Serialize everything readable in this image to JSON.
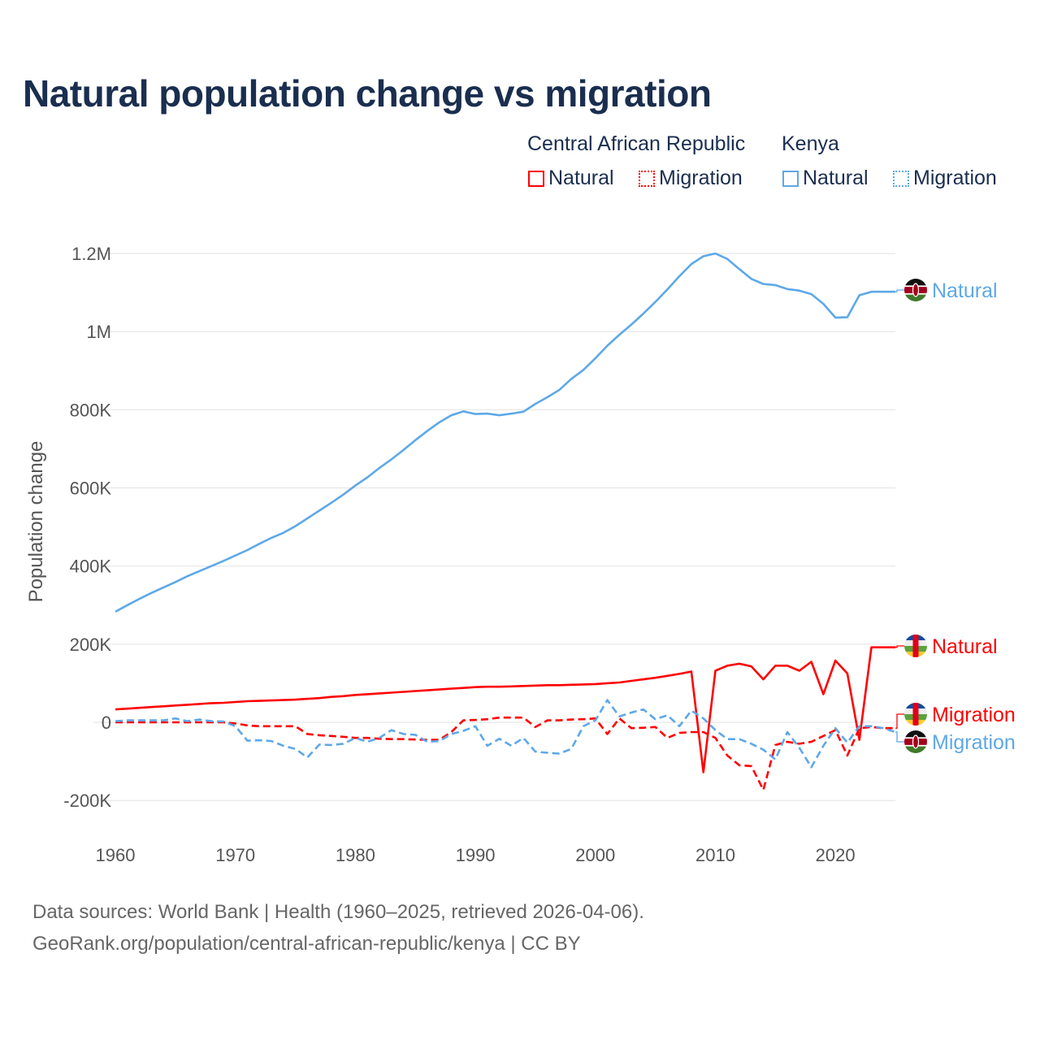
{
  "title": "Natural population change vs migration",
  "legend": {
    "groups": [
      {
        "name": "Central African Republic",
        "items": [
          "Natural",
          "Migration"
        ]
      },
      {
        "name": "Kenya",
        "items": [
          "Natural",
          "Migration"
        ]
      }
    ]
  },
  "footer": {
    "line1": "Data sources: World Bank | Health (1960–2025, retrieved 2026-04-06).",
    "line2": "GeoRank.org/population/central-african-republic/kenya | CC BY"
  },
  "colors": {
    "car": "#ff0000",
    "kenya": "#5ea8e8",
    "title": "#1a2e4f"
  },
  "chart_data": {
    "type": "line",
    "title": "Natural population change vs migration",
    "xlabel": "",
    "ylabel": "Population change",
    "xlim": [
      1960,
      2025
    ],
    "ylim": [
      -200000,
      1200000
    ],
    "x_ticks": [
      1960,
      1970,
      1980,
      1990,
      2000,
      2010,
      2020
    ],
    "x_tick_labels": [
      "1960",
      "1970",
      "1980",
      "1990",
      "2000",
      "2010",
      "2020"
    ],
    "y_ticks": [
      -200000,
      0,
      200000,
      400000,
      600000,
      800000,
      1000000,
      1200000
    ],
    "y_tick_labels": [
      "-200K",
      "0",
      "200K",
      "400K",
      "600K",
      "800K",
      "1M",
      "1.2M"
    ],
    "grid": true,
    "legend_position": "top-right",
    "x": [
      1960,
      1961,
      1962,
      1963,
      1964,
      1965,
      1966,
      1967,
      1968,
      1969,
      1970,
      1971,
      1972,
      1973,
      1974,
      1975,
      1976,
      1977,
      1978,
      1979,
      1980,
      1981,
      1982,
      1983,
      1984,
      1985,
      1986,
      1987,
      1988,
      1989,
      1990,
      1991,
      1992,
      1993,
      1994,
      1995,
      1996,
      1997,
      1998,
      1999,
      2000,
      2001,
      2002,
      2003,
      2004,
      2005,
      2006,
      2007,
      2008,
      2009,
      2010,
      2011,
      2012,
      2013,
      2014,
      2015,
      2016,
      2017,
      2018,
      2019,
      2020,
      2021,
      2022,
      2023,
      2024,
      2025
    ],
    "series": [
      {
        "name": "Kenya Natural",
        "country": "Kenya",
        "kind": "Natural",
        "end_label": "Natural",
        "dashed": false,
        "values": [
          283000,
          300000,
          316000,
          331000,
          345000,
          359000,
          374000,
          387000,
          400000,
          413000,
          427000,
          441000,
          457000,
          472000,
          485000,
          502000,
          522000,
          542000,
          562000,
          583000,
          606000,
          627000,
          651000,
          673000,
          697000,
          722000,
          746000,
          768000,
          786000,
          796000,
          789000,
          790000,
          786000,
          790000,
          795000,
          815000,
          832000,
          851000,
          879000,
          902000,
          932000,
          964000,
          992000,
          1018000,
          1046000,
          1076000,
          1108000,
          1142000,
          1173000,
          1193000,
          1200000,
          1186000,
          1160000,
          1135000,
          1122000,
          1119000,
          1109000,
          1105000,
          1096000,
          1071000,
          1036000,
          1037000,
          1093000,
          1102000,
          1102000,
          1102000
        ]
      },
      {
        "name": "Central African Republic Natural",
        "country": "Central African Republic",
        "kind": "Natural",
        "end_label": "Natural",
        "dashed": false,
        "values": [
          33000,
          35000,
          37000,
          39000,
          41000,
          43000,
          45000,
          47000,
          49000,
          50000,
          52000,
          54000,
          55000,
          56000,
          57000,
          58000,
          60000,
          62000,
          65000,
          67000,
          70000,
          72000,
          74000,
          76000,
          78000,
          80000,
          82000,
          84000,
          86000,
          88000,
          90000,
          91000,
          91000,
          92000,
          93000,
          94000,
          95000,
          95000,
          96000,
          97000,
          98000,
          100000,
          102000,
          106000,
          110000,
          114000,
          119000,
          124000,
          130000,
          -128000,
          132000,
          145000,
          150000,
          143000,
          110000,
          145000,
          145000,
          132000,
          155000,
          72000,
          158000,
          125000,
          -45000,
          192000,
          192000,
          192000
        ]
      },
      {
        "name": "Central African Republic Migration",
        "country": "Central African Republic",
        "kind": "Migration",
        "end_label": "Migration",
        "dashed": true,
        "values": [
          0,
          0,
          0,
          0,
          0,
          0,
          0,
          0,
          0,
          0,
          -3000,
          -8000,
          -10000,
          -10000,
          -10000,
          -10000,
          -30000,
          -33000,
          -35000,
          -37000,
          -40000,
          -40000,
          -42000,
          -43000,
          -43000,
          -44000,
          -45000,
          -45000,
          -25000,
          5000,
          6000,
          8000,
          12000,
          12000,
          12000,
          -12000,
          5000,
          5000,
          7000,
          8000,
          10000,
          -30000,
          10000,
          -15000,
          -14000,
          -12000,
          -40000,
          -27000,
          -25000,
          -25000,
          -40000,
          -85000,
          -110000,
          -112000,
          -173000,
          -58000,
          -50000,
          -55000,
          -50000,
          -35000,
          -20000,
          -85000,
          -15000,
          -12000,
          -15000,
          -15000
        ]
      },
      {
        "name": "Kenya Migration",
        "country": "Kenya",
        "kind": "Migration",
        "end_label": "Migration",
        "dashed": true,
        "values": [
          3000,
          5000,
          5000,
          5000,
          5000,
          10000,
          3000,
          7000,
          3000,
          2000,
          -10000,
          -47000,
          -46000,
          -48000,
          -60000,
          -68000,
          -90000,
          -57000,
          -58000,
          -55000,
          -40000,
          -50000,
          -40000,
          -20000,
          -30000,
          -32000,
          -50000,
          -48000,
          -30000,
          -22000,
          -10000,
          -60000,
          -42000,
          -60000,
          -40000,
          -75000,
          -78000,
          -80000,
          -68000,
          -10000,
          5000,
          57000,
          15000,
          25000,
          33000,
          8000,
          18000,
          -10000,
          30000,
          10000,
          -20000,
          -43000,
          -43000,
          -55000,
          -70000,
          -95000,
          -25000,
          -65000,
          -115000,
          -60000,
          -15000,
          -52000,
          -10000,
          -10000,
          -15000,
          -25000
        ]
      }
    ]
  }
}
